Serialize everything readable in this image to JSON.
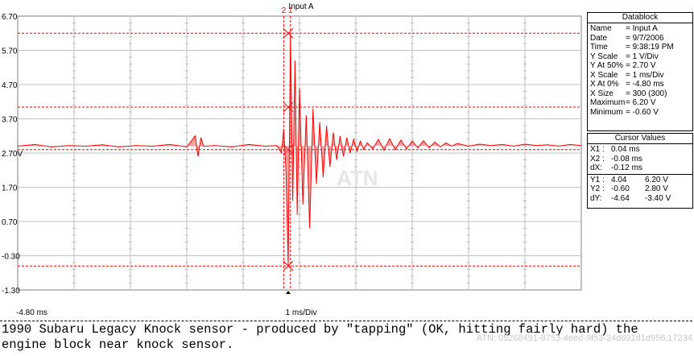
{
  "chart_data": {
    "type": "line",
    "title": "Input A",
    "xlabel": "1 ms/Div",
    "x_start_label": "-4.80 ms",
    "xlim": [
      -4.8,
      5.2
    ],
    "ylim": [
      -1.3,
      6.7
    ],
    "y_ticks": [
      "6.70",
      "5.70",
      "4.70",
      "3.70",
      "2.70V",
      "1.70",
      "0.70",
      "-0.30",
      "-1.30"
    ],
    "grid": true,
    "series": [
      {
        "name": "Input A",
        "color": "#ff0000",
        "x": [
          -4.8,
          -4.5,
          -4.2,
          -3.9,
          -3.6,
          -3.3,
          -3.0,
          -2.7,
          -2.4,
          -2.1,
          -1.8,
          -1.65,
          -1.6,
          -1.55,
          -1.5,
          -1.3,
          -1.0,
          -0.7,
          -0.4,
          -0.2,
          -0.12,
          -0.08,
          -0.04,
          0.0,
          0.04,
          0.08,
          0.12,
          0.16,
          0.2,
          0.26,
          0.32,
          0.38,
          0.44,
          0.5,
          0.56,
          0.62,
          0.68,
          0.74,
          0.8,
          0.86,
          0.92,
          0.98,
          1.04,
          1.1,
          1.16,
          1.22,
          1.28,
          1.34,
          1.4,
          1.5,
          1.6,
          1.7,
          1.8,
          1.9,
          2.0,
          2.1,
          2.2,
          2.3,
          2.4,
          2.5,
          2.6,
          2.7,
          2.8,
          2.9,
          3.0,
          3.2,
          3.4,
          3.6,
          3.8,
          4.0,
          4.2,
          4.4,
          4.6,
          4.8,
          5.0,
          5.2
        ],
        "y": [
          2.9,
          2.95,
          2.88,
          2.92,
          2.9,
          2.94,
          2.88,
          2.92,
          2.9,
          2.95,
          2.88,
          3.2,
          2.6,
          3.15,
          2.9,
          2.92,
          2.88,
          2.95,
          2.9,
          2.92,
          2.7,
          3.4,
          2.2,
          -0.6,
          6.2,
          1.3,
          5.4,
          0.9,
          4.6,
          1.2,
          3.8,
          0.5,
          4.0,
          1.8,
          3.6,
          2.0,
          3.5,
          2.3,
          3.3,
          2.5,
          3.2,
          2.6,
          3.15,
          2.7,
          3.1,
          2.75,
          3.05,
          2.8,
          3.0,
          2.82,
          3.1,
          2.78,
          3.12,
          2.8,
          3.08,
          2.82,
          3.05,
          2.85,
          3.06,
          2.85,
          3.02,
          2.88,
          3.0,
          2.9,
          2.98,
          2.9,
          2.96,
          2.92,
          2.95,
          2.9,
          2.96,
          2.92,
          2.94,
          2.9,
          2.95,
          2.92
        ]
      }
    ],
    "reference_lines": [
      6.2,
      4.04,
      2.8,
      -0.6
    ],
    "cursors": [
      {
        "label": "2",
        "x": -0.08
      },
      {
        "label": "1",
        "x": 0.04
      }
    ]
  },
  "datablock": {
    "title": "Datablock",
    "rows": [
      {
        "k": "Name",
        "v": "= Input A"
      },
      {
        "k": "Date",
        "v": "= 9/7/2006"
      },
      {
        "k": "Time",
        "v": "= 9:38:19 PM"
      },
      {
        "k": "Y Scale",
        "v": "= 1    V/Div"
      },
      {
        "k": "Y At 50%",
        "v": "= 2.70 V"
      },
      {
        "k": "X Scale",
        "v": "= 1    ms/Div"
      },
      {
        "k": "X At 0%",
        "v": "= -4.80 ms"
      },
      {
        "k": "X Size",
        "v": "= 300 (300)"
      },
      {
        "k": "Maximum",
        "v": "= 6.20 V"
      },
      {
        "k": "Minimum",
        "v": "= -0.60 V"
      }
    ]
  },
  "cursor_values": {
    "title": "Cursor Values",
    "x_rows": [
      {
        "k": "X1 :",
        "v": "0.04 ms"
      },
      {
        "k": "X2 :",
        "v": "-0.08 ms"
      },
      {
        "k": "dX:",
        "v": "-0.12 ms"
      }
    ],
    "y_rows": [
      {
        "k": "Y1 :",
        "a": "4.04",
        "b": "6.20 V"
      },
      {
        "k": "Y2 :",
        "a": "-0.60",
        "b": "2.80 V"
      },
      {
        "k": "dY:",
        "a": "-4.64",
        "b": "-3.40 V"
      }
    ]
  },
  "caption": "1990 Subaru Legacy Knock sensor - produced by \"tapping\" (OK, hitting fairly hard) the engine block near knock sensor.",
  "watermark": "ATN: 05268491-8753-4eed-9f53-24d691d1d956.17234",
  "logo_text": "ATN"
}
